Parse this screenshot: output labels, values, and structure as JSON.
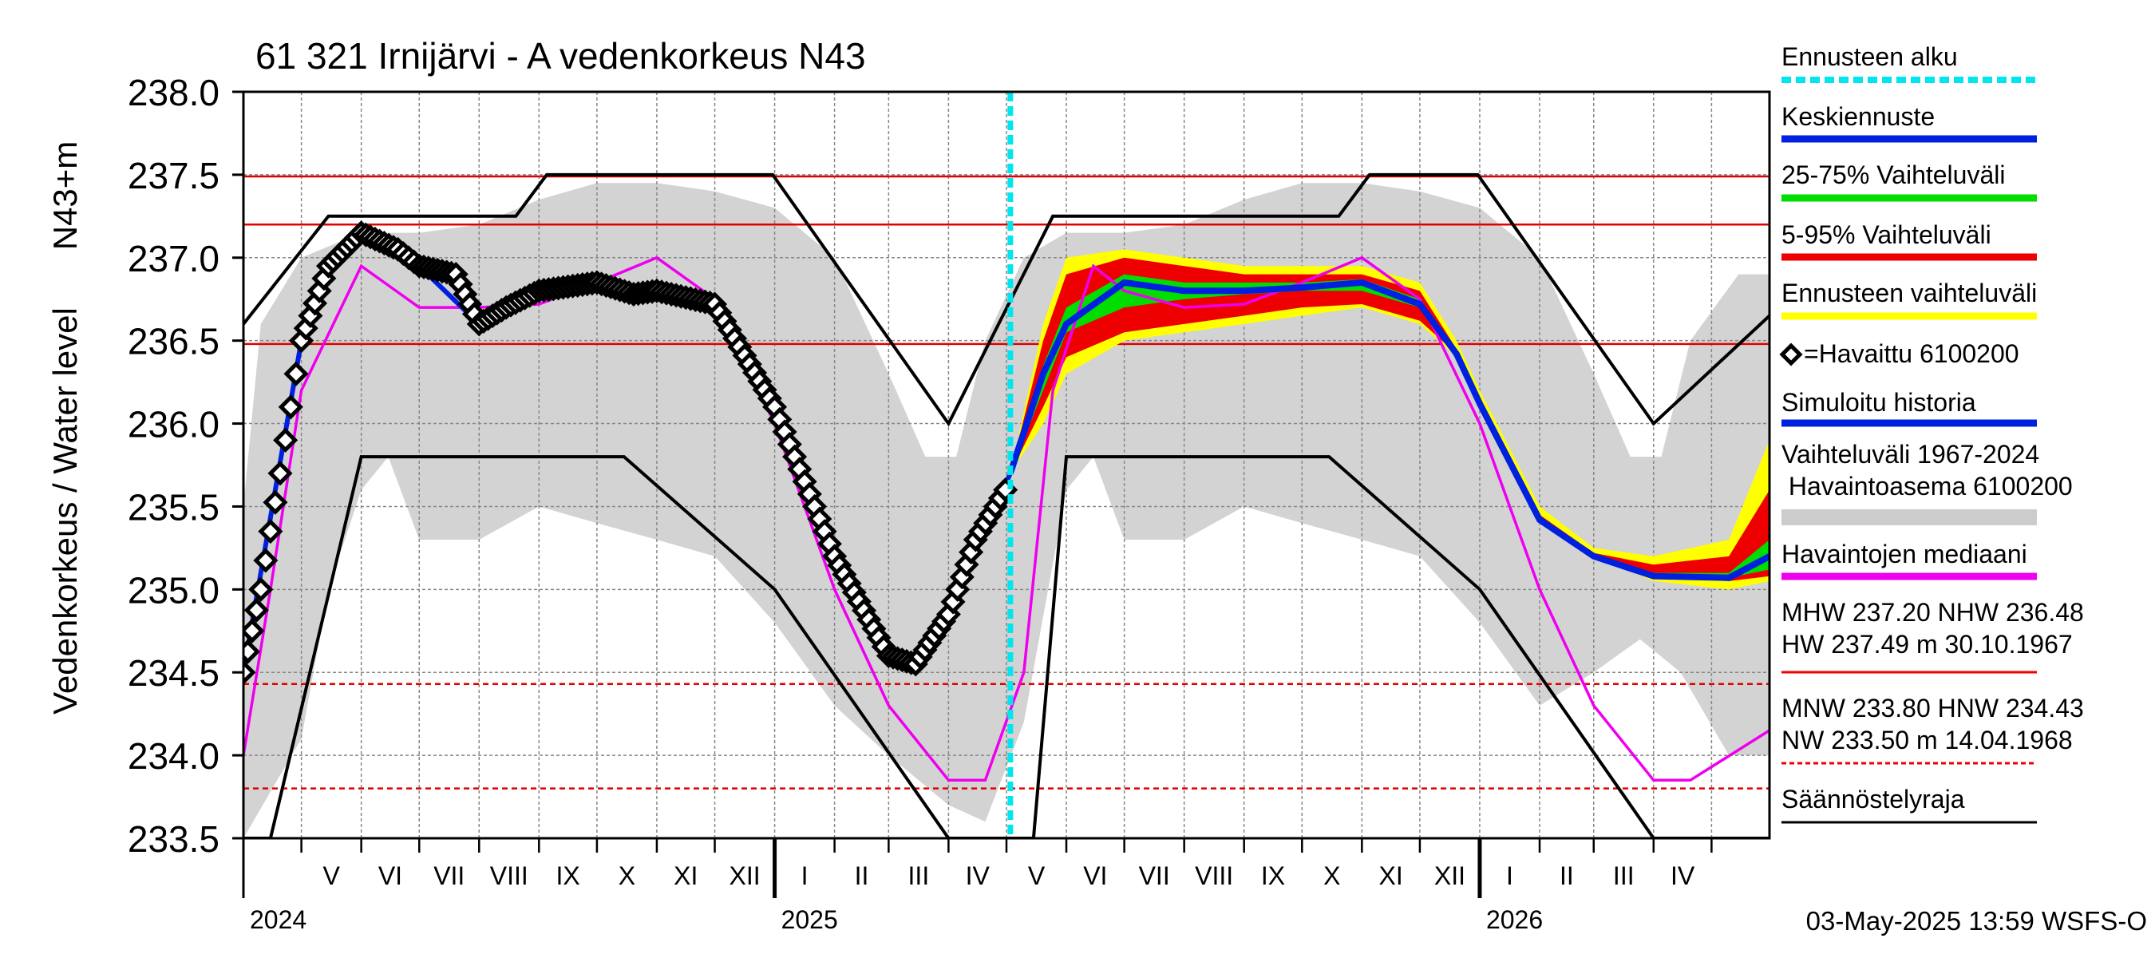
{
  "chart_data": {
    "type": "line",
    "title": "61 321 Irnijärvi - A vedenkorkeus N43",
    "ylabel_unit": "N43+m",
    "ylabel": "Vedenkorkeus / Water level",
    "ylim": [
      233.5,
      238.0
    ],
    "yticks": [
      "238.0",
      "237.5",
      "237.0",
      "236.5",
      "236.0",
      "235.5",
      "235.0",
      "234.5",
      "234.0",
      "233.5"
    ],
    "x_start": "2024-04-01",
    "x_end": "2026-05-31",
    "forecast_start": "2025-05-03",
    "months": [
      "V",
      "VI",
      "VII",
      "VIII",
      "IX",
      "X",
      "XI",
      "XII",
      "I",
      "II",
      "III",
      "IV",
      "V",
      "VI",
      "VII",
      "VIII",
      "IX",
      "X",
      "XI",
      "XII",
      "I",
      "II",
      "III",
      "IV"
    ],
    "years": [
      "2024",
      "2025",
      "2026"
    ],
    "hlines": [
      {
        "value": 237.49,
        "style": "solid",
        "color": "#e00000"
      },
      {
        "value": 237.2,
        "style": "solid",
        "color": "#e00000"
      },
      {
        "value": 236.48,
        "style": "solid",
        "color": "#e00000"
      },
      {
        "value": 234.43,
        "style": "dashed",
        "color": "#e00000"
      },
      {
        "value": 233.8,
        "style": "dashed",
        "color": "#e00000"
      },
      {
        "value": 233.5,
        "style": "dashed",
        "color": "#e00000"
      }
    ],
    "regulation_upper": [
      [
        "2024-04-01",
        236.6
      ],
      [
        "2024-05-15",
        237.25
      ],
      [
        "2024-08-20",
        237.25
      ],
      [
        "2024-09-05",
        237.5
      ],
      [
        "2024-12-31",
        237.5
      ],
      [
        "2025-04-01",
        236.0
      ],
      [
        "2025-05-25",
        237.25
      ],
      [
        "2025-10-20",
        237.25
      ],
      [
        "2025-11-05",
        237.5
      ],
      [
        "2025-12-31",
        237.5
      ],
      [
        "2026-04-01",
        236.0
      ],
      [
        "2026-05-31",
        236.65
      ]
    ],
    "regulation_lower": [
      [
        "2024-04-01",
        233.5
      ],
      [
        "2024-04-15",
        233.5
      ],
      [
        "2024-06-01",
        235.8
      ],
      [
        "2024-10-15",
        235.8
      ],
      [
        "2025-01-01",
        235.0
      ],
      [
        "2025-04-01",
        233.5
      ],
      [
        "2025-05-15",
        233.5
      ],
      [
        "2025-06-01",
        235.8
      ],
      [
        "2025-10-15",
        235.8
      ],
      [
        "2026-01-01",
        235.0
      ],
      [
        "2026-04-01",
        233.5
      ],
      [
        "2026-05-31",
        233.5
      ]
    ],
    "history_band_upper": [
      [
        "2024-04-01",
        235.5
      ],
      [
        "2024-04-10",
        236.6
      ],
      [
        "2024-05-01",
        237.0
      ],
      [
        "2024-06-01",
        237.15
      ],
      [
        "2024-07-01",
        237.15
      ],
      [
        "2024-08-01",
        237.2
      ],
      [
        "2024-09-01",
        237.35
      ],
      [
        "2024-10-01",
        237.45
      ],
      [
        "2024-11-01",
        237.45
      ],
      [
        "2024-12-01",
        237.4
      ],
      [
        "2025-01-01",
        237.3
      ],
      [
        "2025-02-01",
        237.0
      ],
      [
        "2025-03-01",
        236.3
      ],
      [
        "2025-03-20",
        235.8
      ],
      [
        "2025-04-05",
        235.8
      ],
      [
        "2025-04-20",
        236.5
      ],
      [
        "2025-05-10",
        237.0
      ],
      [
        "2025-06-01",
        237.15
      ],
      [
        "2025-07-01",
        237.15
      ],
      [
        "2025-08-01",
        237.2
      ],
      [
        "2025-09-01",
        237.35
      ],
      [
        "2025-10-01",
        237.45
      ],
      [
        "2025-11-01",
        237.45
      ],
      [
        "2025-12-01",
        237.4
      ],
      [
        "2026-01-01",
        237.3
      ],
      [
        "2026-02-01",
        237.0
      ],
      [
        "2026-03-01",
        236.3
      ],
      [
        "2026-03-20",
        235.8
      ],
      [
        "2026-04-05",
        235.8
      ],
      [
        "2026-04-20",
        236.5
      ],
      [
        "2026-05-15",
        236.9
      ],
      [
        "2026-05-31",
        236.9
      ]
    ],
    "history_band_lower": [
      [
        "2024-04-01",
        233.5
      ],
      [
        "2024-05-01",
        234.1
      ],
      [
        "2024-05-15",
        235.0
      ],
      [
        "2024-06-01",
        235.6
      ],
      [
        "2024-06-15",
        235.8
      ],
      [
        "2024-07-01",
        235.3
      ],
      [
        "2024-08-01",
        235.3
      ],
      [
        "2024-09-01",
        235.5
      ],
      [
        "2024-10-01",
        235.4
      ],
      [
        "2024-11-01",
        235.3
      ],
      [
        "2024-12-01",
        235.2
      ],
      [
        "2025-01-01",
        234.8
      ],
      [
        "2025-02-01",
        234.3
      ],
      [
        "2025-03-01",
        234.0
      ],
      [
        "2025-04-01",
        233.7
      ],
      [
        "2025-04-20",
        233.6
      ],
      [
        "2025-05-10",
        234.2
      ],
      [
        "2025-06-01",
        235.6
      ],
      [
        "2025-06-15",
        235.8
      ],
      [
        "2025-07-01",
        235.3
      ],
      [
        "2025-08-01",
        235.3
      ],
      [
        "2025-09-01",
        235.5
      ],
      [
        "2025-10-01",
        235.4
      ],
      [
        "2025-11-01",
        235.3
      ],
      [
        "2025-12-01",
        235.2
      ],
      [
        "2026-01-01",
        234.8
      ],
      [
        "2026-02-01",
        234.3
      ],
      [
        "2026-03-01",
        234.5
      ],
      [
        "2026-03-25",
        234.7
      ],
      [
        "2026-04-15",
        234.5
      ],
      [
        "2026-05-10",
        234.0
      ],
      [
        "2026-05-31",
        234.0
      ]
    ],
    "forecast_band_outer": {
      "upper": [
        [
          "2025-05-03",
          235.7
        ],
        [
          "2025-05-20",
          236.6
        ],
        [
          "2025-06-01",
          237.0
        ],
        [
          "2025-07-01",
          237.05
        ],
        [
          "2025-08-01",
          237.0
        ],
        [
          "2025-09-01",
          236.95
        ],
        [
          "2025-10-01",
          236.95
        ],
        [
          "2025-11-01",
          236.95
        ],
        [
          "2025-12-01",
          236.85
        ],
        [
          "2025-12-20",
          236.5
        ],
        [
          "2026-01-01",
          236.2
        ],
        [
          "2026-02-01",
          235.5
        ],
        [
          "2026-03-01",
          235.25
        ],
        [
          "2026-04-01",
          235.2
        ],
        [
          "2026-05-10",
          235.3
        ],
        [
          "2026-05-31",
          235.9
        ]
      ],
      "lower": [
        [
          "2025-05-03",
          235.7
        ],
        [
          "2025-05-20",
          236.0
        ],
        [
          "2025-06-01",
          236.3
        ],
        [
          "2025-07-01",
          236.5
        ],
        [
          "2025-08-01",
          236.55
        ],
        [
          "2025-09-01",
          236.6
        ],
        [
          "2025-10-01",
          236.65
        ],
        [
          "2025-11-01",
          236.7
        ],
        [
          "2025-12-01",
          236.6
        ],
        [
          "2025-12-20",
          236.4
        ],
        [
          "2026-01-01",
          236.1
        ],
        [
          "2026-02-01",
          235.4
        ],
        [
          "2026-03-01",
          235.2
        ],
        [
          "2026-04-01",
          235.05
        ],
        [
          "2026-05-10",
          235.0
        ],
        [
          "2026-05-31",
          235.05
        ]
      ]
    },
    "forecast_band_5_95": {
      "upper": [
        [
          "2025-05-03",
          235.7
        ],
        [
          "2025-05-20",
          236.5
        ],
        [
          "2025-06-01",
          236.9
        ],
        [
          "2025-07-01",
          237.0
        ],
        [
          "2025-08-01",
          236.95
        ],
        [
          "2025-09-01",
          236.9
        ],
        [
          "2025-10-01",
          236.9
        ],
        [
          "2025-11-01",
          236.9
        ],
        [
          "2025-12-01",
          236.8
        ],
        [
          "2025-12-20",
          236.45
        ],
        [
          "2026-01-01",
          236.15
        ],
        [
          "2026-02-01",
          235.45
        ],
        [
          "2026-03-01",
          235.22
        ],
        [
          "2026-04-01",
          235.15
        ],
        [
          "2026-05-10",
          235.2
        ],
        [
          "2026-05-31",
          235.6
        ]
      ],
      "lower": [
        [
          "2025-05-03",
          235.7
        ],
        [
          "2025-05-20",
          236.1
        ],
        [
          "2025-06-01",
          236.4
        ],
        [
          "2025-07-01",
          236.55
        ],
        [
          "2025-08-01",
          236.6
        ],
        [
          "2025-09-01",
          236.65
        ],
        [
          "2025-10-01",
          236.7
        ],
        [
          "2025-11-01",
          236.72
        ],
        [
          "2025-12-01",
          236.62
        ],
        [
          "2025-12-20",
          236.42
        ],
        [
          "2026-01-01",
          236.12
        ],
        [
          "2026-02-01",
          235.42
        ],
        [
          "2026-03-01",
          235.2
        ],
        [
          "2026-04-01",
          235.08
        ],
        [
          "2026-05-10",
          235.05
        ],
        [
          "2026-05-31",
          235.08
        ]
      ]
    },
    "forecast_band_25_75": {
      "upper": [
        [
          "2025-05-03",
          235.7
        ],
        [
          "2025-05-20",
          236.35
        ],
        [
          "2025-06-01",
          236.7
        ],
        [
          "2025-07-01",
          236.9
        ],
        [
          "2025-08-01",
          236.85
        ],
        [
          "2025-09-01",
          236.85
        ],
        [
          "2025-10-01",
          236.85
        ],
        [
          "2025-11-01",
          236.87
        ],
        [
          "2025-12-01",
          236.75
        ],
        [
          "2025-12-20",
          236.42
        ],
        [
          "2026-01-01",
          236.12
        ],
        [
          "2026-02-01",
          235.42
        ],
        [
          "2026-03-01",
          235.2
        ],
        [
          "2026-04-01",
          235.1
        ],
        [
          "2026-05-10",
          235.1
        ],
        [
          "2026-05-31",
          235.3
        ]
      ],
      "lower": [
        [
          "2025-05-03",
          235.7
        ],
        [
          "2025-05-20",
          236.2
        ],
        [
          "2025-06-01",
          236.55
        ],
        [
          "2025-07-01",
          236.7
        ],
        [
          "2025-08-01",
          236.75
        ],
        [
          "2025-09-01",
          236.78
        ],
        [
          "2025-10-01",
          236.8
        ],
        [
          "2025-11-01",
          236.8
        ],
        [
          "2025-12-01",
          236.7
        ],
        [
          "2025-12-20",
          236.42
        ],
        [
          "2026-01-01",
          236.12
        ],
        [
          "2026-02-01",
          235.42
        ],
        [
          "2026-03-01",
          235.2
        ],
        [
          "2026-04-01",
          235.08
        ],
        [
          "2026-05-10",
          235.07
        ],
        [
          "2026-05-31",
          235.12
        ]
      ]
    },
    "median_forecast": [
      [
        "2025-05-03",
        235.7
      ],
      [
        "2025-05-20",
        236.3
      ],
      [
        "2025-06-01",
        236.6
      ],
      [
        "2025-07-01",
        236.85
      ],
      [
        "2025-08-01",
        236.8
      ],
      [
        "2025-09-01",
        236.8
      ],
      [
        "2025-10-01",
        236.82
      ],
      [
        "2025-11-01",
        236.85
      ],
      [
        "2025-12-01",
        236.72
      ],
      [
        "2025-12-20",
        236.42
      ],
      [
        "2026-01-01",
        236.12
      ],
      [
        "2026-02-01",
        235.42
      ],
      [
        "2026-03-01",
        235.2
      ],
      [
        "2026-04-01",
        235.08
      ],
      [
        "2026-05-10",
        235.07
      ],
      [
        "2026-05-31",
        235.2
      ]
    ],
    "simulated_history": [
      [
        "2024-04-01",
        234.5
      ],
      [
        "2024-05-01",
        236.5
      ],
      [
        "2024-05-15",
        236.95
      ],
      [
        "2024-06-01",
        237.15
      ],
      [
        "2024-07-01",
        236.95
      ],
      [
        "2024-08-01",
        236.6
      ],
      [
        "2024-09-01",
        236.8
      ],
      [
        "2024-10-01",
        236.85
      ],
      [
        "2024-11-01",
        236.82
      ],
      [
        "2024-12-01",
        236.7
      ],
      [
        "2025-01-01",
        236.1
      ],
      [
        "2025-02-01",
        235.2
      ],
      [
        "2025-03-01",
        234.6
      ],
      [
        "2025-03-15",
        234.55
      ],
      [
        "2025-04-01",
        234.85
      ],
      [
        "2025-05-03",
        235.7
      ]
    ],
    "observed": [
      [
        "2024-04-01",
        234.5
      ],
      [
        "2024-04-10",
        235.0
      ],
      [
        "2024-04-20",
        235.7
      ],
      [
        "2024-05-01",
        236.5
      ],
      [
        "2024-05-15",
        236.95
      ],
      [
        "2024-06-01",
        237.15
      ],
      [
        "2024-06-20",
        237.05
      ],
      [
        "2024-07-01",
        236.95
      ],
      [
        "2024-07-20",
        236.9
      ],
      [
        "2024-08-01",
        236.6
      ],
      [
        "2024-08-15",
        236.7
      ],
      [
        "2024-09-01",
        236.8
      ],
      [
        "2024-10-01",
        236.85
      ],
      [
        "2024-10-20",
        236.78
      ],
      [
        "2024-11-01",
        236.8
      ],
      [
        "2024-12-01",
        236.72
      ],
      [
        "2025-01-01",
        236.1
      ],
      [
        "2025-02-01",
        235.2
      ],
      [
        "2025-03-01",
        234.6
      ],
      [
        "2025-03-15",
        234.55
      ],
      [
        "2025-04-01",
        234.85
      ],
      [
        "2025-04-15",
        235.3
      ],
      [
        "2025-05-03",
        235.65
      ]
    ],
    "observed_median": [
      [
        "2024-04-01",
        234.0
      ],
      [
        "2024-04-15",
        235.0
      ],
      [
        "2024-05-01",
        236.2
      ],
      [
        "2024-06-01",
        236.95
      ],
      [
        "2024-07-01",
        236.7
      ],
      [
        "2024-08-01",
        236.7
      ],
      [
        "2024-09-01",
        236.72
      ],
      [
        "2024-10-01",
        236.85
      ],
      [
        "2024-11-01",
        237.0
      ],
      [
        "2024-12-01",
        236.75
      ],
      [
        "2025-01-01",
        236.0
      ],
      [
        "2025-02-01",
        235.0
      ],
      [
        "2025-03-01",
        234.3
      ],
      [
        "2025-04-01",
        233.85
      ],
      [
        "2025-04-20",
        233.85
      ],
      [
        "2025-05-10",
        234.5
      ],
      [
        "2025-05-25",
        236.2
      ],
      [
        "2025-06-15",
        236.95
      ],
      [
        "2025-07-01",
        236.8
      ],
      [
        "2025-08-01",
        236.7
      ],
      [
        "2025-09-01",
        236.72
      ],
      [
        "2025-10-01",
        236.85
      ],
      [
        "2025-11-01",
        237.0
      ],
      [
        "2025-12-01",
        236.75
      ],
      [
        "2026-01-01",
        236.0
      ],
      [
        "2026-02-01",
        235.0
      ],
      [
        "2026-03-01",
        234.3
      ],
      [
        "2026-04-01",
        233.85
      ],
      [
        "2026-04-20",
        233.85
      ],
      [
        "2026-05-31",
        234.15
      ]
    ],
    "legend": [
      {
        "label": "Ennusteen alku",
        "color": "#00e5ee",
        "kind": "dash"
      },
      {
        "label": "Keskiennuste",
        "color": "#0020e0",
        "kind": "line"
      },
      {
        "label": "25-75% Vaihteluväli",
        "color": "#00dd00",
        "kind": "line"
      },
      {
        "label": "5-95% Vaihteluväli",
        "color": "#ee0000",
        "kind": "line"
      },
      {
        "label": "Ennusteen vaihteluväli",
        "color": "#ffff00",
        "kind": "line"
      },
      {
        "label": "=Havaittu 6100200",
        "color": "#000000",
        "kind": "diamond"
      },
      {
        "label": "Simuloitu historia",
        "color": "#0020e0",
        "kind": "line"
      },
      {
        "label": "Vaihteluväli 1967-2024",
        "label2": " Havaintoasema 6100200",
        "color": "#cccccc",
        "kind": "band"
      },
      {
        "label": "Havaintojen mediaani",
        "color": "#ee00ee",
        "kind": "line"
      },
      {
        "label": "MHW 237.20 NHW 236.48",
        "label2": "HW 237.49 m 30.10.1967",
        "color": "#ee0000",
        "kind": "thin"
      },
      {
        "label": "MNW 233.80 HNW 234.43",
        "label2": "NW 233.50 m 14.04.1968",
        "color": "#ee0000",
        "kind": "dashthin"
      },
      {
        "label": "Säännöstelyraja",
        "color": "#000000",
        "kind": "thin"
      }
    ],
    "footer": "03-May-2025 13:59 WSFS-O"
  }
}
